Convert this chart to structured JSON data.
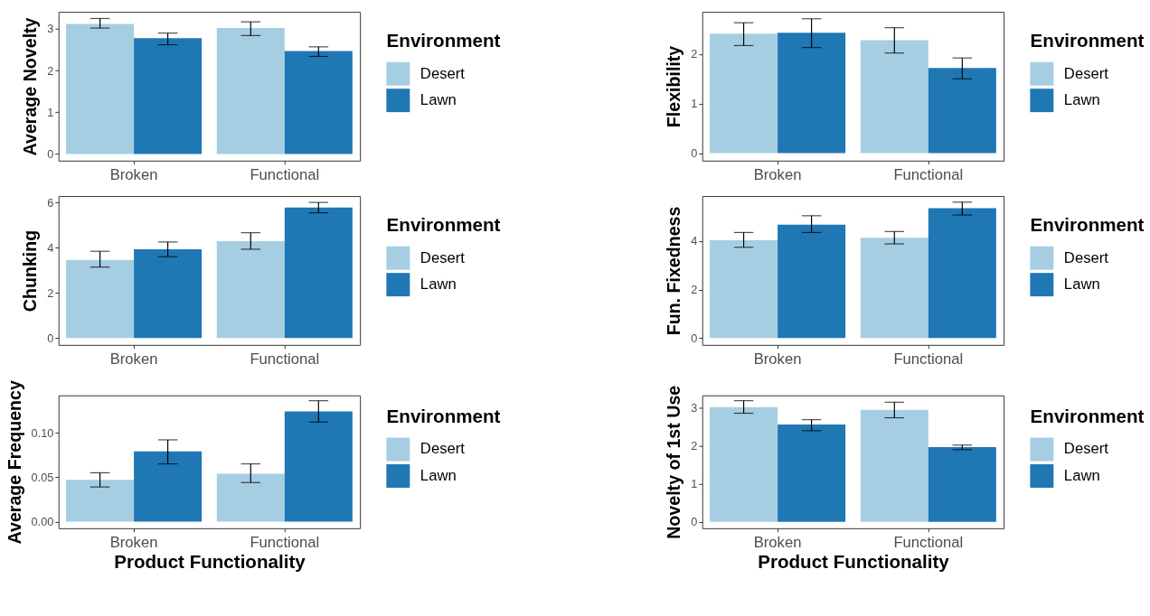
{
  "chart_data": [
    {
      "type": "bar",
      "ylabel": "Average Novelty",
      "legend_title": "Environment",
      "legend": "right",
      "grid": false,
      "categories": [
        "Broken",
        "Functional"
      ],
      "ylim": [
        -0.16,
        3.41
      ],
      "yticks": [
        0,
        1,
        2,
        3
      ],
      "series": [
        {
          "name": "Desert",
          "color": "#a6cee3",
          "values": [
            3.12,
            3.02
          ],
          "errors": [
            [
              3.02,
              3.25
            ],
            [
              2.84,
              3.17
            ]
          ]
        },
        {
          "name": "Lawn",
          "color": "#1f78b4",
          "values": [
            2.78,
            2.47
          ],
          "errors": [
            [
              2.62,
              2.9
            ],
            [
              2.34,
              2.57
            ]
          ]
        }
      ]
    },
    {
      "type": "bar",
      "ylabel": "Flexibility",
      "legend_title": "Environment",
      "legend": "right",
      "grid": false,
      "categories": [
        "Broken",
        "Functional"
      ],
      "ylim": [
        -0.15,
        2.85
      ],
      "yticks": [
        0,
        1,
        2
      ],
      "series": [
        {
          "name": "Desert",
          "color": "#a6cee3",
          "values": [
            2.41,
            2.28
          ],
          "errors": [
            [
              2.17,
              2.63
            ],
            [
              2.02,
              2.53
            ]
          ]
        },
        {
          "name": "Lawn",
          "color": "#1f78b4",
          "values": [
            2.43,
            1.72
          ],
          "errors": [
            [
              2.13,
              2.71
            ],
            [
              1.5,
              1.92
            ]
          ]
        }
      ]
    },
    {
      "type": "bar",
      "ylabel": "Chunking",
      "legend_title": "Environment",
      "legend": "right",
      "grid": false,
      "categories": [
        "Broken",
        "Functional"
      ],
      "ylim": [
        -0.3,
        6.28
      ],
      "yticks": [
        0,
        2,
        4,
        6
      ],
      "series": [
        {
          "name": "Desert",
          "color": "#a6cee3",
          "values": [
            3.46,
            4.29
          ],
          "errors": [
            [
              3.14,
              3.84
            ],
            [
              3.93,
              4.66
            ]
          ]
        },
        {
          "name": "Lawn",
          "color": "#1f78b4",
          "values": [
            3.93,
            5.77
          ],
          "errors": [
            [
              3.6,
              4.25
            ],
            [
              5.54,
              6.0
            ]
          ]
        }
      ]
    },
    {
      "type": "bar",
      "ylabel": "Fun. Fixedness",
      "legend_title": "Environment",
      "legend": "right",
      "grid": false,
      "categories": [
        "Broken",
        "Functional"
      ],
      "ylim": [
        -0.28,
        5.85
      ],
      "yticks": [
        0,
        2,
        4
      ],
      "series": [
        {
          "name": "Desert",
          "color": "#a6cee3",
          "values": [
            4.03,
            4.13
          ],
          "errors": [
            [
              3.74,
              4.35
            ],
            [
              3.88,
              4.39
            ]
          ]
        },
        {
          "name": "Lawn",
          "color": "#1f78b4",
          "values": [
            4.67,
            5.35
          ],
          "errors": [
            [
              4.35,
              5.04
            ],
            [
              5.07,
              5.6
            ]
          ]
        }
      ]
    },
    {
      "type": "bar",
      "ylabel": "Average Frequency",
      "xlabel": "Product Functionality",
      "legend_title": "Environment",
      "legend": "right",
      "grid": false,
      "categories": [
        "Broken",
        "Functional"
      ],
      "ylim": [
        -0.0074,
        0.142
      ],
      "yticks": [
        {
          "value": 0,
          "label": "0.00"
        },
        {
          "value": 0.05,
          "label": "0.05"
        },
        {
          "value": 0.1,
          "label": "0.10"
        }
      ],
      "series": [
        {
          "name": "Desert",
          "color": "#a6cee3",
          "values": [
            0.047,
            0.054
          ],
          "errors": [
            [
              0.039,
              0.055
            ],
            [
              0.044,
              0.065
            ]
          ]
        },
        {
          "name": "Lawn",
          "color": "#1f78b4",
          "values": [
            0.079,
            0.124
          ],
          "errors": [
            [
              0.065,
              0.092
            ],
            [
              0.112,
              0.136
            ]
          ]
        }
      ]
    },
    {
      "type": "bar",
      "ylabel": "Novelty of 1st Use",
      "xlabel": "Product Functionality",
      "legend_title": "Environment",
      "legend": "right",
      "grid": false,
      "categories": [
        "Broken",
        "Functional"
      ],
      "ylim": [
        -0.17,
        3.33
      ],
      "yticks": [
        0,
        1,
        2,
        3
      ],
      "series": [
        {
          "name": "Desert",
          "color": "#a6cee3",
          "values": [
            3.02,
            2.95
          ],
          "errors": [
            [
              2.86,
              3.19
            ],
            [
              2.74,
              3.15
            ]
          ]
        },
        {
          "name": "Lawn",
          "color": "#1f78b4",
          "values": [
            2.56,
            1.97
          ],
          "errors": [
            [
              2.4,
              2.69
            ],
            [
              1.9,
              2.02
            ]
          ]
        }
      ]
    }
  ]
}
